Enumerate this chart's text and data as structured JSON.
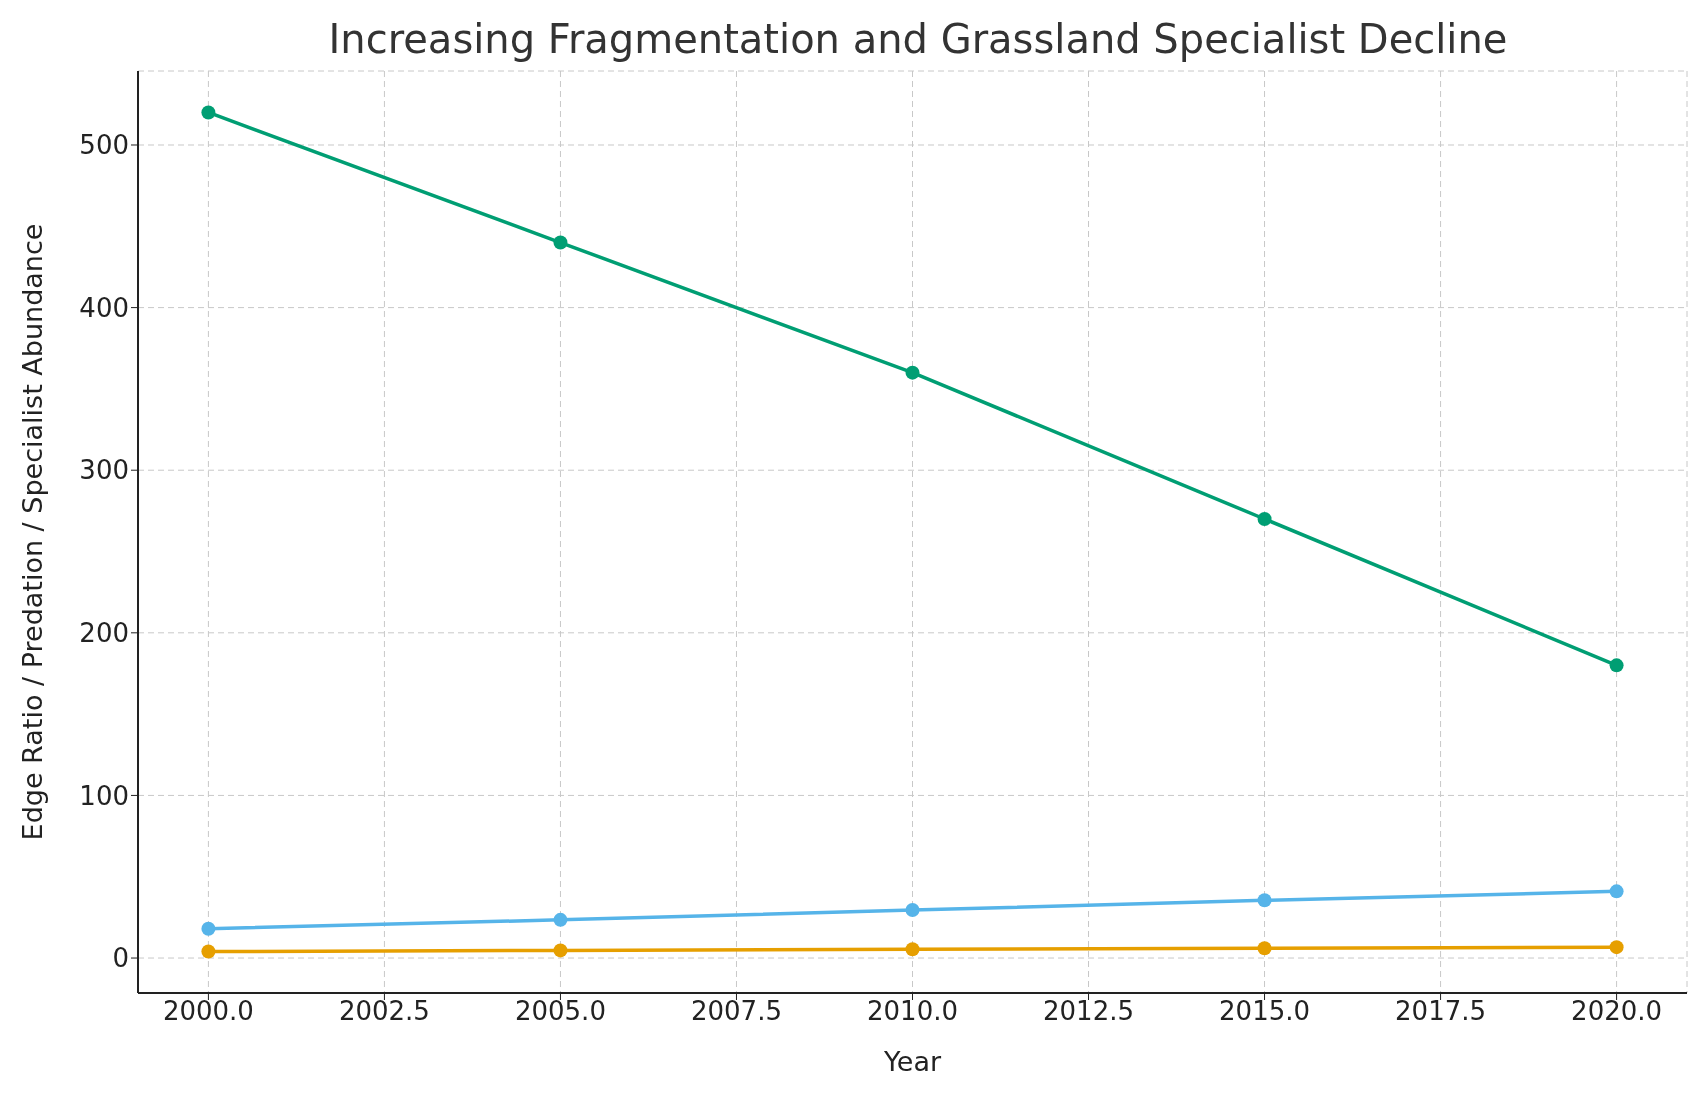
{
  "chart_data": {
    "type": "line",
    "title": "Increasing Fragmentation and Grassland Specialist Decline",
    "xlabel": "Year",
    "ylabel": "Edge Ratio / Predation / Specialist Abundance",
    "x": [
      2000,
      2005,
      2010,
      2015,
      2020
    ],
    "series": [
      {
        "color": "#56b4e9",
        "values": [
          18,
          23.5,
          29.5,
          35.5,
          41
        ]
      },
      {
        "color": "#e69f00",
        "values": [
          4,
          4.7,
          5.4,
          6,
          6.7
        ]
      },
      {
        "color": "#009e73",
        "values": [
          520,
          440,
          360,
          270,
          180
        ]
      }
    ],
    "xlim": [
      1999,
      2021
    ],
    "ylim": [
      -21.5,
      545.5
    ],
    "xticks": [
      {
        "value": 2000,
        "label": "2000.0"
      },
      {
        "value": 2002.5,
        "label": "2002.5"
      },
      {
        "value": 2005,
        "label": "2005.0"
      },
      {
        "value": 2007.5,
        "label": "2007.5"
      },
      {
        "value": 2010,
        "label": "2010.0"
      },
      {
        "value": 2012.5,
        "label": "2012.5"
      },
      {
        "value": 2015,
        "label": "2015.0"
      },
      {
        "value": 2017.5,
        "label": "2017.5"
      },
      {
        "value": 2020,
        "label": "2020.0"
      }
    ],
    "yticks": [
      0,
      100,
      200,
      300,
      400,
      500
    ],
    "grid": true,
    "marker": "circle",
    "line_style": "solid"
  }
}
